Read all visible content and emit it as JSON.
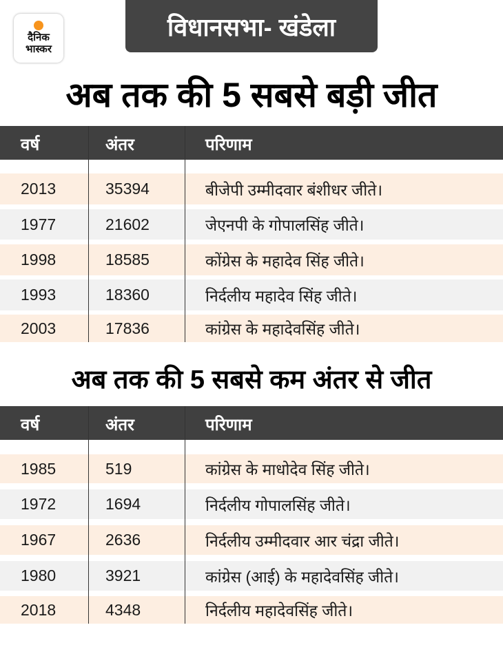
{
  "logo": {
    "line1": "दैनिक",
    "line2": "भास्कर"
  },
  "header": {
    "title": "विधानसभा- खंडेला"
  },
  "columns": [
    "वर्ष",
    "अंतर",
    "परिणाम"
  ],
  "biggest": {
    "title": "अब तक की 5 सबसे बड़ी जीत",
    "rows": [
      {
        "year": "2013",
        "margin": "35394",
        "result": "बीजेपी उम्मीदवार बंशीधर जीते।"
      },
      {
        "year": "1977",
        "margin": "21602",
        "result": "जेएनपी के गोपालसिंह जीते।"
      },
      {
        "year": "1998",
        "margin": "18585",
        "result": "कोंग्रेस के महादेव सिंह जीते।"
      },
      {
        "year": "1993",
        "margin": "18360",
        "result": "निर्दलीय महादेव सिंह जीते।"
      },
      {
        "year": "2003",
        "margin": "17836",
        "result": "कांग्रेस के महादेवसिंह जीते।"
      }
    ]
  },
  "smallest": {
    "title": "अब तक की 5 सबसे कम अंतर से जीत",
    "rows": [
      {
        "year": "1985",
        "margin": "519",
        "result": "कांग्रेस के माधोदेव सिंह जीते।"
      },
      {
        "year": "1972",
        "margin": "1694",
        "result": "निर्दलीय गोपालसिंह जीते।"
      },
      {
        "year": "1967",
        "margin": "2636",
        "result": "निर्दलीय उम्मीदवार आर चंद्रा जीते।"
      },
      {
        "year": "1980",
        "margin": "3921",
        "result": "कांग्रेस (आई) के महादेवसिंह जीते।"
      },
      {
        "year": "2018",
        "margin": "4348",
        "result": "निर्दलीय महादेवसिंह जीते।"
      }
    ]
  }
}
